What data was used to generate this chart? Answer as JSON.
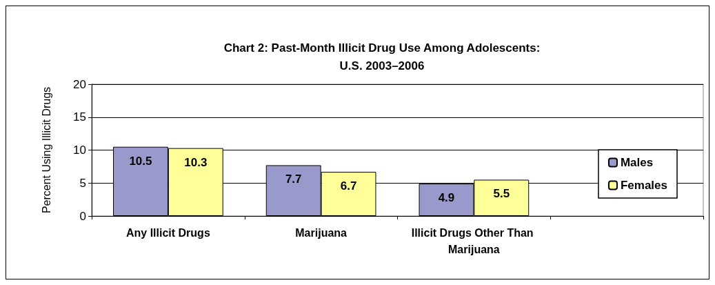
{
  "chart_data": {
    "type": "bar",
    "title": "Chart 2: Past-Month Illicit Drug Use Among Adolescents:\nU.S. 2003–2006",
    "ylabel": "Percent Using Illicit Drugs",
    "categories": [
      "Any Illicit Drugs",
      "Marijuana",
      "Illicit Drugs Other Than Marijuana",
      null
    ],
    "series": [
      {
        "name": "Males",
        "color": "#9999cc",
        "values": [
          10.5,
          7.7,
          4.9,
          null
        ]
      },
      {
        "name": "Females",
        "color": "#ffff99",
        "values": [
          10.3,
          6.7,
          5.5,
          null
        ]
      }
    ],
    "ylim": [
      0,
      20
    ],
    "yticks": [
      0,
      5,
      10,
      15,
      20
    ],
    "grid": "y",
    "legend": "right",
    "data_labels": true
  }
}
